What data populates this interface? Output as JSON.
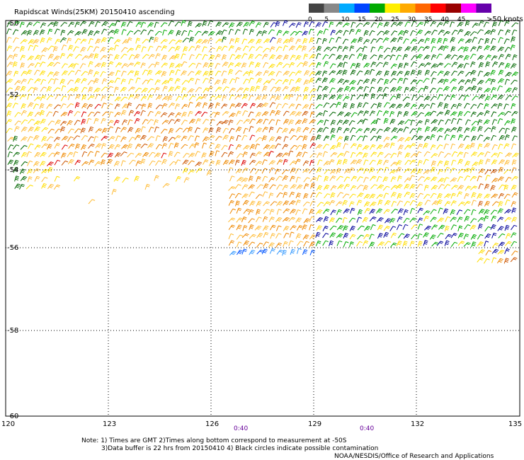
{
  "title": "Rapidscat Winds(25KM) 20150410 ascending",
  "colorbar": {
    "unit_label": ">50 knots",
    "tick_labels": [
      "0",
      "5",
      "10",
      "15",
      "20",
      "25",
      "30",
      "35",
      "40",
      "45"
    ],
    "colors": [
      "#444444",
      "#888888",
      "#00aaff",
      "#0044ff",
      "#00aa00",
      "#ffee00",
      "#ffaa00",
      "#ff6600",
      "#ff0000",
      "#990000",
      "#ff00ff",
      "#6600aa"
    ]
  },
  "lat_labels": [
    "-50",
    "-52",
    "-54",
    "-56",
    "-58",
    "-60"
  ],
  "lon_labels": [
    "120",
    "123",
    "126",
    "129",
    "132",
    "135"
  ],
  "time_labels": [
    "0:40",
    "0:40"
  ],
  "notes": {
    "line1": "Note: 1) Times are GMT 2)Times along bottom correspond to measurement at -50S",
    "line2": "3)Data buffer is 22 hrs from 20150410 4) Black circles indicate possible contamination",
    "credit": "NOAA/NESDIS/Office of Research and Applications"
  },
  "palette": {
    "dark_green": "#006600",
    "green": "#00aa00",
    "yellow": "#ffdd00",
    "light_orange": "#ffbb33",
    "orange": "#ee8800",
    "brown": "#cc5500",
    "red": "#dd0000",
    "blue": "#0055ff",
    "dark_blue": "#000099",
    "time_label": "#660099"
  }
}
